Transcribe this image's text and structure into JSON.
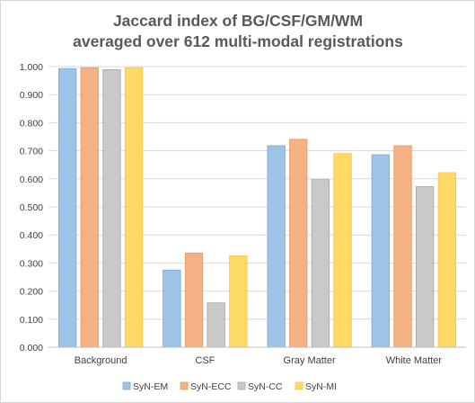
{
  "chart_data": {
    "type": "bar",
    "title_lines": [
      "Jaccard index of BG/CSF/GM/WM",
      "averaged over 612 multi-modal registrations"
    ],
    "categories": [
      "Background",
      "CSF",
      "Gray Matter",
      "White Matter"
    ],
    "series": [
      {
        "name": "SyN-EM",
        "values": [
          0.993,
          0.275,
          0.718,
          0.686
        ],
        "color": "#9dc3e6",
        "edge": "#7aa8d6"
      },
      {
        "name": "SyN-ECC",
        "values": [
          0.996,
          0.336,
          0.741,
          0.718
        ],
        "color": "#f4b183",
        "edge": "#e59a66"
      },
      {
        "name": "SyN-CC",
        "values": [
          0.989,
          0.158,
          0.597,
          0.572
        ],
        "color": "#c9c9c9",
        "edge": "#a6a6a6"
      },
      {
        "name": "SyN-MI",
        "values": [
          0.996,
          0.326,
          0.69,
          0.622
        ],
        "color": "#ffd966",
        "edge": "#f2c744"
      }
    ],
    "y_ticks": [
      "0.000",
      "0.100",
      "0.200",
      "0.300",
      "0.400",
      "0.500",
      "0.600",
      "0.700",
      "0.800",
      "0.900",
      "1.000"
    ],
    "ylim": [
      0,
      1
    ],
    "grid": true,
    "legend_position": "bottom"
  }
}
